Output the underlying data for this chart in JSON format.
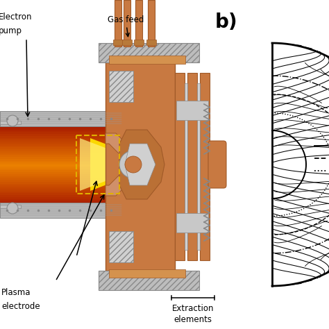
{
  "background_color": "#ffffff",
  "fig_width": 4.74,
  "fig_height": 4.74,
  "dpi": 100,
  "panel_b_label": "b)",
  "panel_b_label_fontsize": 20,
  "panel_b_label_fontweight": "bold",
  "copper_color": "#C87941",
  "copper_dark": "#A05A28",
  "plasma_yellow": "#FFE000",
  "plasma_orange": "#E87020",
  "plasma_bright": "#FFF080",
  "steel_color": "#ADADAD",
  "steel_dark": "#888888",
  "steel_light": "#D0D0D0",
  "annotations": {
    "gas_feed": "Gas feed",
    "plasma_electrode": "Plasma\nelectrode",
    "extraction_elements": "Extraction\nelements",
    "electron_pump": "Electron\npump"
  }
}
